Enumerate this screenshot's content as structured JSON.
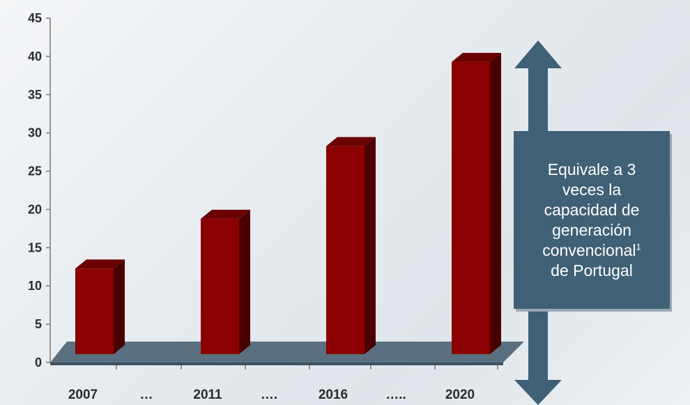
{
  "chart_data": {
    "type": "bar",
    "categories": [
      "2007",
      "2011",
      "2016",
      "2020"
    ],
    "values": [
      13,
      19.5,
      29,
      40
    ],
    "separators": [
      "…",
      "….",
      "…..",
      ""
    ],
    "ylim": [
      0,
      45
    ],
    "yticks": [
      0,
      5,
      10,
      15,
      20,
      25,
      30,
      35,
      40,
      45
    ],
    "title": "",
    "xlabel": "",
    "ylabel": "",
    "grid": false,
    "colors": {
      "bar_front": "#8b0000",
      "bar_side": "#4a0000",
      "bar_top": "#6a0000",
      "floor": "#5a7080",
      "arrow": "#3f6075"
    }
  },
  "callout": {
    "lines": [
      "Equivale a 3",
      "veces la",
      "capacidad de",
      "generación",
      "convencional",
      "de Portugal"
    ],
    "footnote": "1"
  }
}
